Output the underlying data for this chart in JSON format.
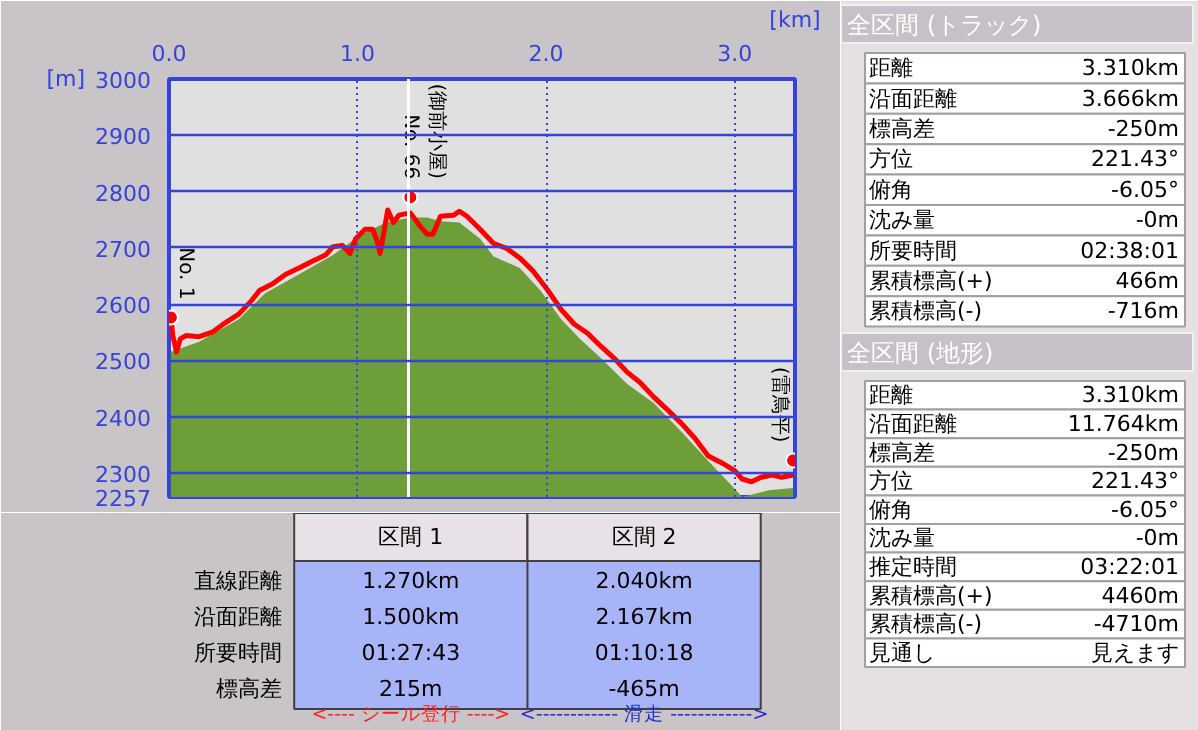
{
  "chart_data": [
    {
      "type": "area",
      "xlabel": "[km]",
      "ylabel": "[m]",
      "series": [
        {
          "type": "area",
          "color": "#6e9e38",
          "x": [
            0.01,
            0.16,
            0.37,
            0.51,
            0.69,
            0.87,
            1.01,
            1.15,
            1.28,
            1.37,
            1.44,
            1.54,
            1.65,
            1.72,
            1.86,
            1.97,
            2.08,
            2.18,
            2.29,
            2.43,
            2.57,
            2.72,
            2.86,
            2.96,
            3.04,
            3.18,
            3.31
          ],
          "values": [
            2515,
            2533,
            2573,
            2619,
            2653,
            2687,
            2722,
            2745,
            2754,
            2754,
            2747,
            2745,
            2716,
            2685,
            2664,
            2624,
            2573,
            2538,
            2504,
            2458,
            2424,
            2372,
            2321,
            2286,
            2257,
            2269,
            2273
          ]
        },
        {
          "type": "line",
          "color": "#ff0000",
          "x": [
            0.01,
            0.02,
            0.04,
            0.06,
            0.09,
            0.16,
            0.23,
            0.3,
            0.37,
            0.44,
            0.48,
            0.55,
            0.62,
            0.69,
            0.76,
            0.83,
            0.87,
            0.92,
            0.96,
            0.99,
            1.04,
            1.08,
            1.1,
            1.12,
            1.16,
            1.19,
            1.22,
            1.28,
            1.33,
            1.37,
            1.4,
            1.44,
            1.51,
            1.54,
            1.58,
            1.65,
            1.72,
            1.79,
            1.86,
            1.93,
            2.01,
            2.08,
            2.15,
            2.22,
            2.29,
            2.36,
            2.43,
            2.5,
            2.57,
            2.65,
            2.72,
            2.79,
            2.86,
            2.93,
            3.0,
            3.04,
            3.09,
            3.14,
            3.2,
            3.25,
            3.31
          ],
          "values": [
            2576,
            2544,
            2515,
            2538,
            2544,
            2542,
            2550,
            2567,
            2582,
            2607,
            2624,
            2636,
            2653,
            2664,
            2676,
            2687,
            2702,
            2704,
            2690,
            2716,
            2733,
            2733,
            2716,
            2690,
            2767,
            2745,
            2758,
            2762,
            2739,
            2724,
            2724,
            2756,
            2758,
            2765,
            2756,
            2733,
            2708,
            2699,
            2682,
            2659,
            2624,
            2590,
            2564,
            2548,
            2525,
            2504,
            2479,
            2460,
            2435,
            2410,
            2387,
            2361,
            2330,
            2318,
            2304,
            2289,
            2284,
            2292,
            2296,
            2292,
            2296
          ]
        }
      ],
      "xlim": [
        0,
        3.32
      ],
      "ylim": [
        2257,
        3000
      ],
      "xticks": [
        {
          "value": 0,
          "label": "0.0"
        },
        {
          "value": 1,
          "label": "1.0"
        },
        {
          "value": 2,
          "label": "2.0"
        },
        {
          "value": 3,
          "label": "3.0"
        }
      ],
      "yticks": [
        2257,
        2300,
        2400,
        2500,
        2600,
        2700,
        2800,
        2900,
        3000
      ],
      "grid": true,
      "ref_lines": [
        {
          "axis": "x",
          "value": 1.27,
          "color": "#ffffff"
        }
      ],
      "annotations": [
        {
          "text": "No. 1",
          "x": 0.01,
          "y": 2576
        },
        {
          "text": "No. 66",
          "x": 1.28,
          "y": 2790
        },
        {
          "text": "(御前小屋)",
          "x": 1.28,
          "y": 2790
        },
        {
          "text": "(雷鳥平)",
          "x": 3.31,
          "y": 2322
        }
      ]
    },
    {
      "type": "other",
      "categories": [
        "区間 1",
        "区間 2"
      ],
      "y_categories": [
        "直線距離",
        "沿面距離",
        "所要時間",
        "標高差"
      ],
      "cell_labels": [
        [
          "1.270km",
          "2.040km"
        ],
        [
          "1.500km",
          "2.167km"
        ],
        [
          "01:27:43",
          "01:10:18"
        ],
        [
          "215m",
          "-465m"
        ]
      ],
      "annotations": [
        "<---- シール登行 ---->",
        "<------------ 滑走 ------------>"
      ]
    },
    {
      "type": "other",
      "title": "全区間 (トラック)",
      "y_categories": [
        "距離",
        "沿面距離",
        "標高差",
        "方位",
        "俯角",
        "沈み量",
        "所要時間",
        "累積標高(+)",
        "累積標高(-)"
      ],
      "cell_labels": [
        [
          "3.310km"
        ],
        [
          "3.666km"
        ],
        [
          "-250m"
        ],
        [
          "221.43°"
        ],
        [
          "-6.05°"
        ],
        [
          "-0m"
        ],
        [
          "02:38:01"
        ],
        [
          "466m"
        ],
        [
          "-716m"
        ]
      ]
    },
    {
      "type": "other",
      "title": "全区間 (地形)",
      "y_categories": [
        "距離",
        "沿面距離",
        "標高差",
        "方位",
        "俯角",
        "沈み量",
        "推定時間",
        "累積標高(+)",
        "累積標高(-)",
        "見通し"
      ],
      "cell_labels": [
        [
          "3.310km"
        ],
        [
          "11.764km"
        ],
        [
          "-250m"
        ],
        [
          "221.43°"
        ],
        [
          "-6.05°"
        ],
        [
          "-0m"
        ],
        [
          "03:22:01"
        ],
        [
          "4460m"
        ],
        [
          "-4710m"
        ],
        [
          "見えます"
        ]
      ]
    }
  ]
}
